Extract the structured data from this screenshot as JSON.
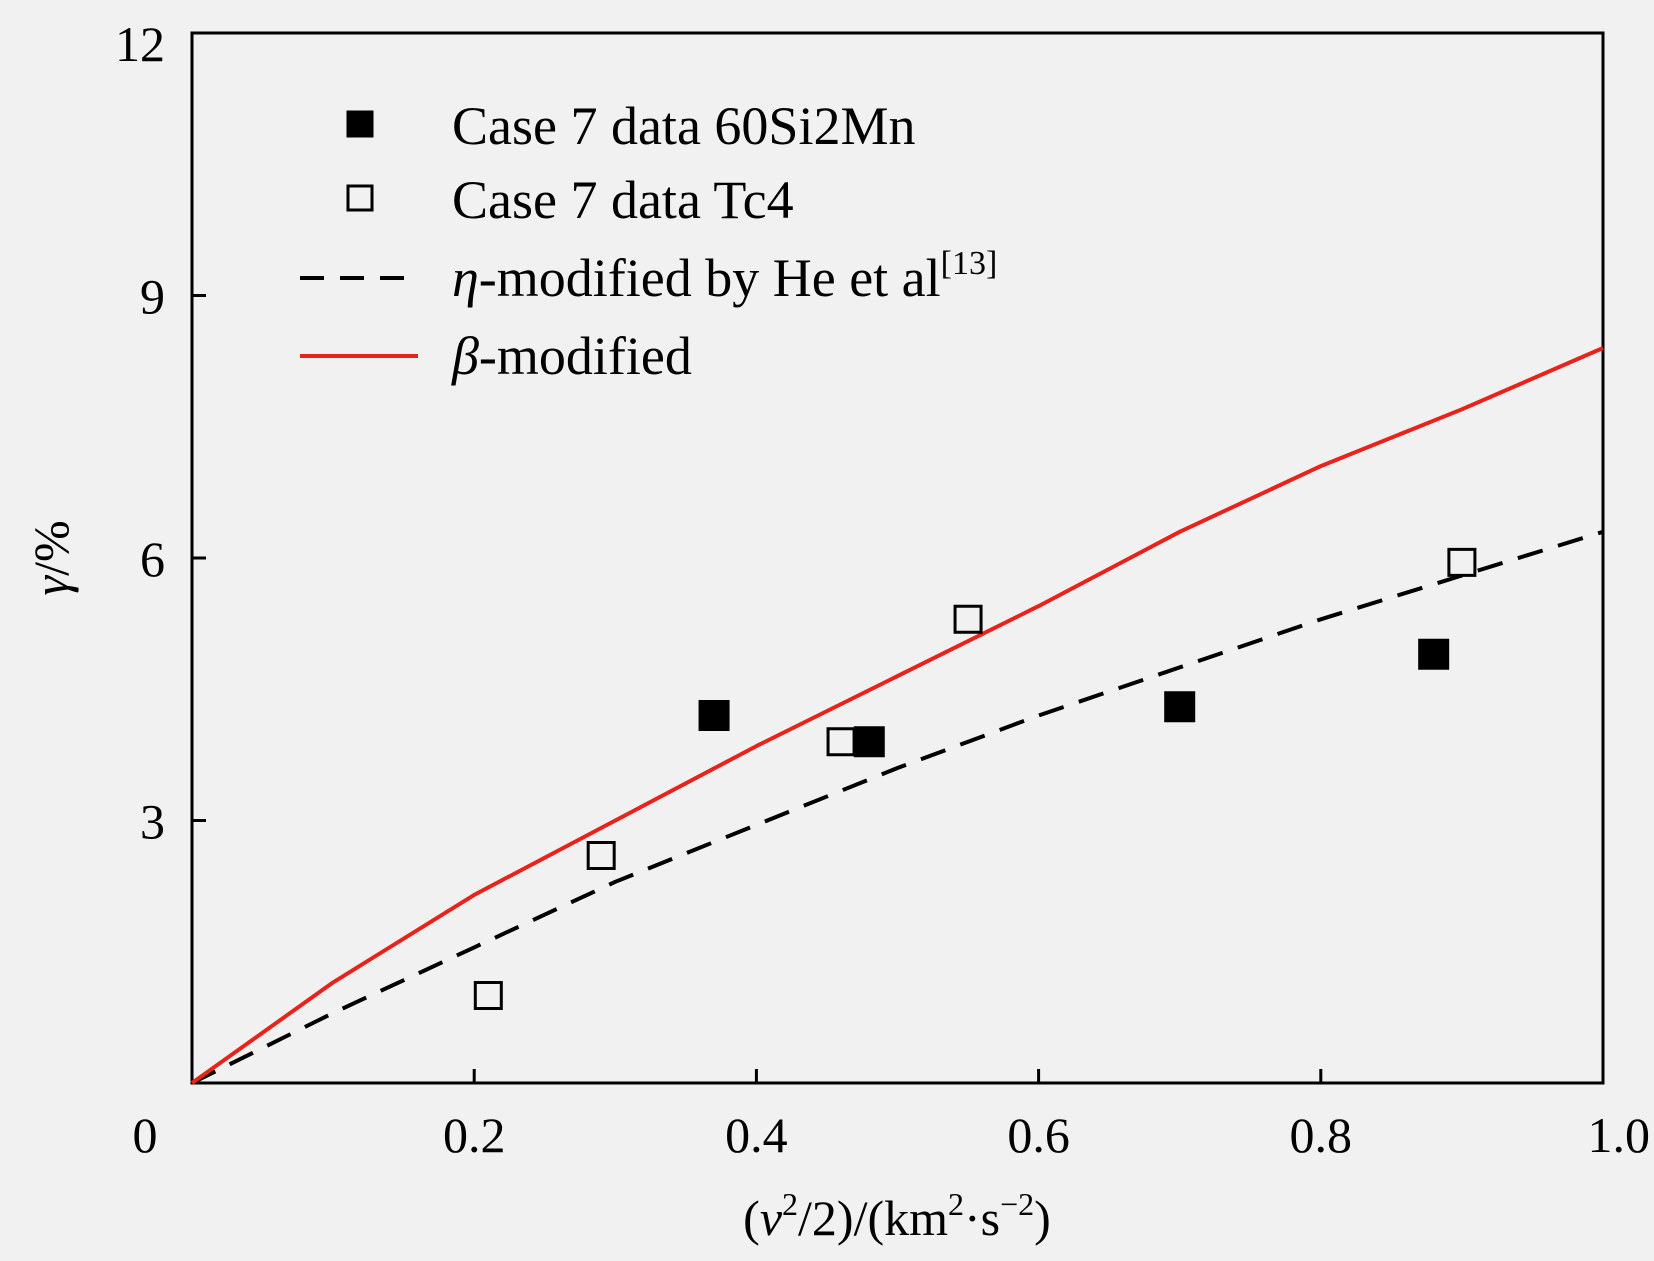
{
  "chart_data": {
    "type": "scatter",
    "xlabel": "(v²/2)/(km²·s⁻²)",
    "ylabel": "γ/%",
    "xlim": [
      0,
      1.0
    ],
    "ylim": [
      0,
      12
    ],
    "x_ticks": [
      "0",
      "0.2",
      "0.4",
      "0.6",
      "0.8",
      "1.0"
    ],
    "y_ticks": [
      "3",
      "6",
      "9",
      "12"
    ],
    "grid": false,
    "legend_position": "top-left",
    "series": [
      {
        "name": "Case 7 data 60Si2Mn",
        "kind": "scatter",
        "marker": "filled-square",
        "color": "#000000",
        "points": [
          [
            0.37,
            4.2
          ],
          [
            0.48,
            3.9
          ],
          [
            0.7,
            4.3
          ],
          [
            0.88,
            4.9
          ]
        ]
      },
      {
        "name": "Case 7 data Tc4",
        "kind": "scatter",
        "marker": "open-square",
        "color": "#000000",
        "points": [
          [
            0.21,
            1.0
          ],
          [
            0.29,
            2.6
          ],
          [
            0.46,
            3.9
          ],
          [
            0.55,
            5.3
          ],
          [
            0.9,
            5.95
          ]
        ]
      },
      {
        "name": "η-modified by He et al[13]",
        "kind": "line",
        "style": "dashed",
        "color": "#000000",
        "points": [
          [
            0,
            0
          ],
          [
            0.1,
            0.8
          ],
          [
            0.2,
            1.55
          ],
          [
            0.3,
            2.3
          ],
          [
            0.4,
            2.95
          ],
          [
            0.5,
            3.6
          ],
          [
            0.6,
            4.2
          ],
          [
            0.7,
            4.75
          ],
          [
            0.8,
            5.3
          ],
          [
            0.9,
            5.8
          ],
          [
            1.0,
            6.3
          ]
        ]
      },
      {
        "name": "β-modified",
        "kind": "line",
        "style": "solid",
        "color": "#e8231b",
        "points": [
          [
            0,
            0
          ],
          [
            0.1,
            1.15
          ],
          [
            0.2,
            2.15
          ],
          [
            0.3,
            3.0
          ],
          [
            0.4,
            3.85
          ],
          [
            0.5,
            4.65
          ],
          [
            0.6,
            5.45
          ],
          [
            0.7,
            6.3
          ],
          [
            0.8,
            7.05
          ],
          [
            0.9,
            7.7
          ],
          [
            1.0,
            8.4
          ]
        ]
      }
    ]
  }
}
